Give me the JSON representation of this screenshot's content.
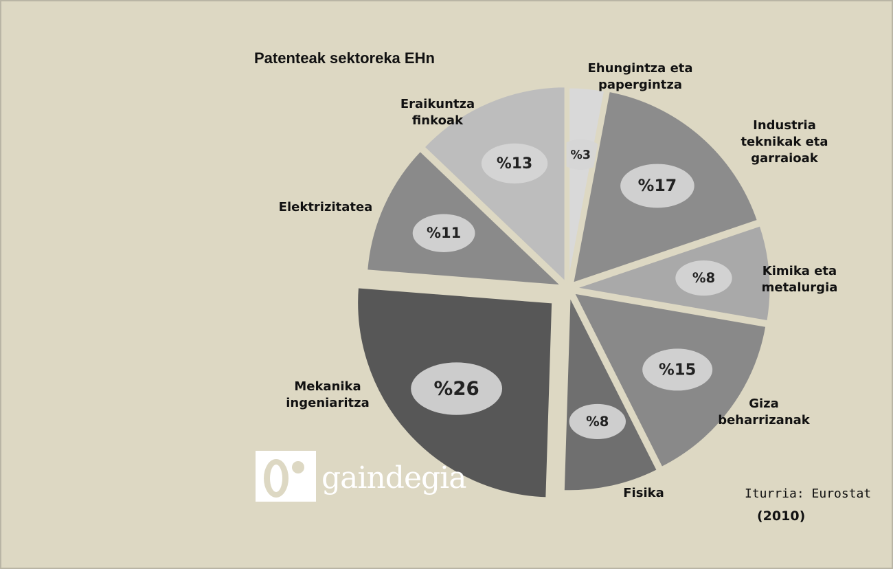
{
  "chart_data": {
    "type": "pie",
    "title": "Patenteak sektoreka EHn",
    "categories": [
      "Ehungintza eta papergintza",
      "Industria teknikak eta garraioak",
      "Kimika eta metalurgia",
      "Giza beharrizanak",
      "Fisika",
      "Mekanika ingeniaritza",
      "Elektrizitatea",
      "Eraikuntza finkoak"
    ],
    "values": [
      3,
      17,
      8,
      15,
      8,
      26,
      11,
      13
    ],
    "value_labels": [
      "%3",
      "%17",
      "%8",
      "%15",
      "%8",
      "%26",
      "%11",
      "%13"
    ],
    "colors": [
      "#d9d9d9",
      "#8c8c8c",
      "#a9a9a9",
      "#898989",
      "#6f6f6f",
      "#575757",
      "#8a8a8a",
      "#bdbdbd"
    ],
    "source": "Iturria: Eurostat",
    "source_year": "(2010)"
  },
  "logo_text": "gaindegia"
}
